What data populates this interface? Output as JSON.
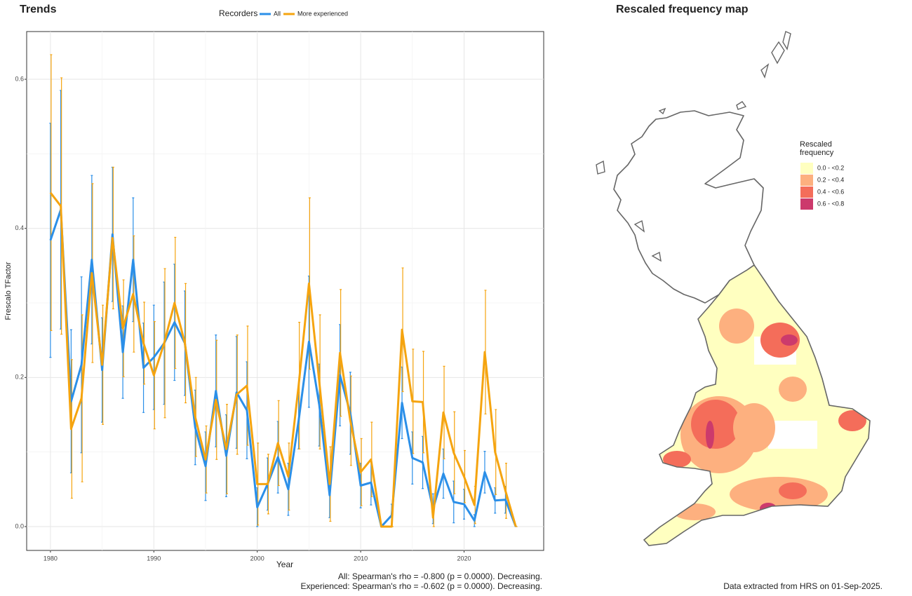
{
  "chart_data": [
    {
      "type": "line",
      "title": "Trends",
      "legend_title": "Recorders",
      "x_label": "Year",
      "y_label": "Frescalo TFactor",
      "x": [
        1980,
        1981,
        1982,
        1983,
        1984,
        1985,
        1986,
        1987,
        1988,
        1989,
        1990,
        1991,
        1992,
        1993,
        1994,
        1995,
        1996,
        1997,
        1998,
        1999,
        2000,
        2001,
        2002,
        2003,
        2004,
        2005,
        2006,
        2007,
        2008,
        2009,
        2010,
        2011,
        2012,
        2013,
        2014,
        2015,
        2016,
        2017,
        2018,
        2019,
        2020,
        2021,
        2022,
        2023,
        2024,
        2025
      ],
      "series": [
        {
          "name": "All",
          "color": "#2b8fe8",
          "values": [
            0.384,
            0.425,
            0.168,
            0.217,
            0.358,
            0.21,
            0.392,
            0.234,
            0.358,
            0.213,
            0.227,
            0.246,
            0.274,
            0.246,
            0.133,
            0.081,
            0.182,
            0.095,
            0.18,
            0.156,
            0.026,
            0.057,
            0.093,
            0.05,
            0.142,
            0.248,
            0.163,
            0.042,
            0.203,
            0.152,
            0.055,
            0.059,
            0.0,
            0.015,
            0.166,
            0.092,
            0.086,
            0.024,
            0.071,
            0.033,
            0.03,
            0.008,
            0.073,
            0.035,
            0.036,
            0.0
          ],
          "errors": [
            0.157,
            0.16,
            0.096,
            0.118,
            0.113,
            0.07,
            0.09,
            0.062,
            0.083,
            0.06,
            0.07,
            0.082,
            0.078,
            0.07,
            0.05,
            0.046,
            0.075,
            0.055,
            0.075,
            0.065,
            0.026,
            0.035,
            0.048,
            0.035,
            0.038,
            0.088,
            0.055,
            0.03,
            0.068,
            0.055,
            0.03,
            0.03,
            0.0,
            0.015,
            0.048,
            0.035,
            0.035,
            0.02,
            0.033,
            0.028,
            0.02,
            0.008,
            0.028,
            0.017,
            0.018,
            0.0
          ]
        },
        {
          "name": "More experienced",
          "color": "#f5a40f",
          "values": [
            0.448,
            0.43,
            0.131,
            0.172,
            0.34,
            0.217,
            0.387,
            0.266,
            0.312,
            0.246,
            0.203,
            0.246,
            0.3,
            0.246,
            0.147,
            0.09,
            0.17,
            0.104,
            0.177,
            0.189,
            0.057,
            0.057,
            0.112,
            0.067,
            0.189,
            0.326,
            0.194,
            0.057,
            0.233,
            0.142,
            0.073,
            0.09,
            0.0,
            0.0,
            0.264,
            0.168,
            0.167,
            0.012,
            0.153,
            0.099,
            0.067,
            0.029,
            0.234,
            0.1,
            0.048,
            0.0
          ],
          "errors": [
            0.185,
            0.172,
            0.093,
            0.112,
            0.12,
            0.08,
            0.095,
            0.065,
            0.078,
            0.055,
            0.072,
            0.1,
            0.088,
            0.08,
            0.053,
            0.045,
            0.08,
            0.06,
            0.08,
            0.08,
            0.055,
            0.04,
            0.057,
            0.045,
            0.085,
            0.115,
            0.09,
            0.05,
            0.085,
            0.06,
            0.045,
            0.05,
            0.0,
            0.0,
            0.083,
            0.07,
            0.068,
            0.012,
            0.062,
            0.055,
            0.035,
            0.025,
            0.083,
            0.057,
            0.037,
            0.0
          ]
        }
      ],
      "xlim": [
        1977.7,
        2027.7
      ],
      "xticks": [
        1980,
        1990,
        2000,
        2010,
        2020
      ],
      "ylim": [
        -0.032,
        0.664
      ],
      "yticks": [
        {
          "value": 0,
          "label": "0.0"
        },
        0.2,
        0.4,
        0.6
      ],
      "grid": true,
      "annotations": [
        "All: Spearman's rho = -0.800 (p = 0.0000). Decreasing.",
        "Experienced: Spearman's rho = -0.602 (p = 0.0000). Decreasing."
      ]
    },
    {
      "type": "map",
      "title": "Rescaled frequency map",
      "legend_title": "Rescaled frequency",
      "classes": [
        {
          "label": "0.0 - <0.2",
          "color": "#ffffc0"
        },
        {
          "label": "0.2 - <0.4",
          "color": "#fdb07f"
        },
        {
          "label": "0.4 - <0.6",
          "color": "#f46d5a"
        },
        {
          "label": "0.6 - <0.8",
          "color": "#cc3a6c"
        }
      ],
      "footer": "Data extracted from HRS on 01-Sep-2025."
    }
  ]
}
